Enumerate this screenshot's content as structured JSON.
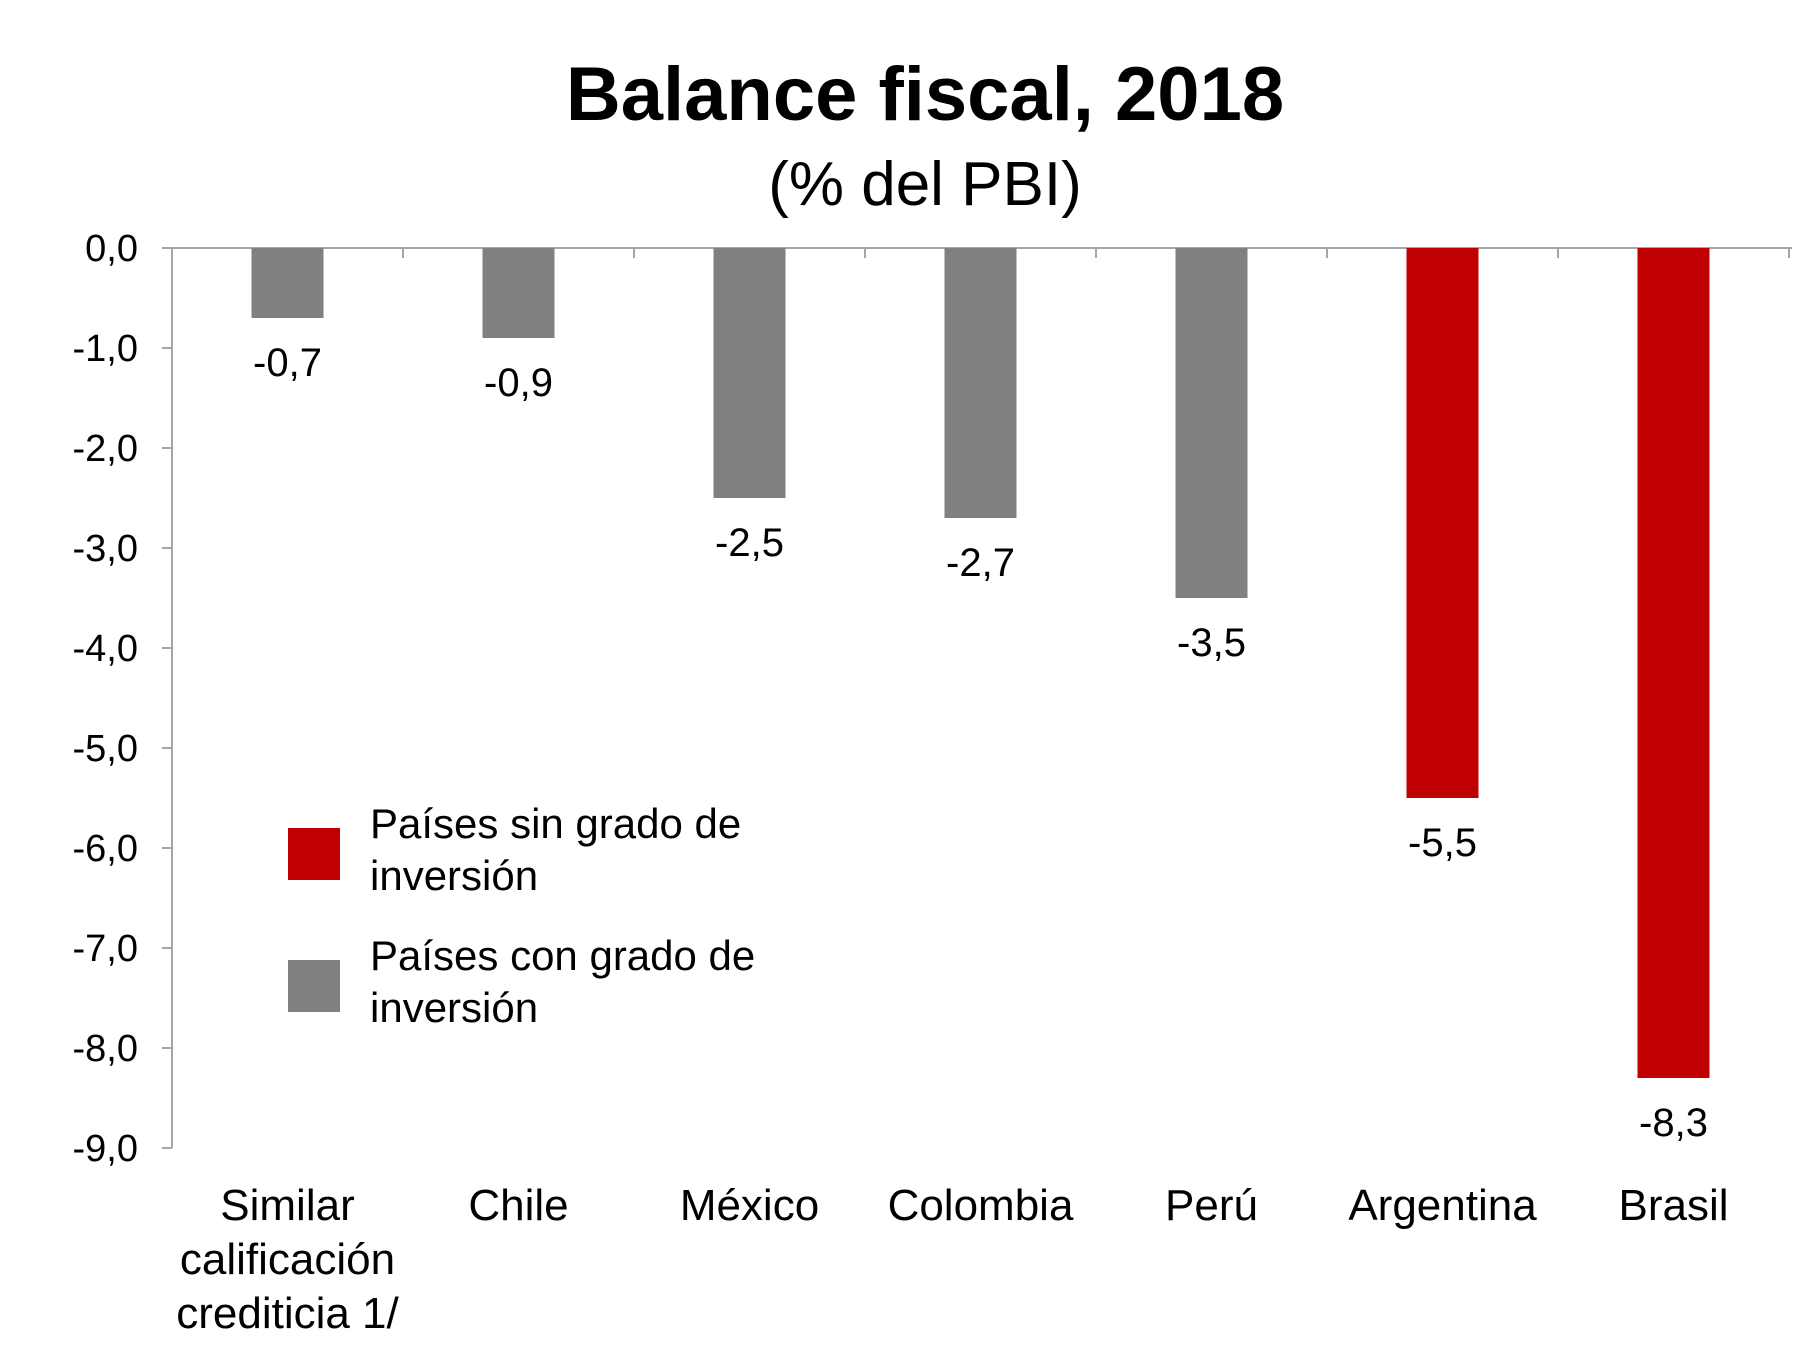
{
  "chart_data": {
    "type": "bar",
    "title": "Balance fiscal, 2018",
    "subtitle": "(% del PBI)",
    "xlabel": "",
    "ylabel": "",
    "ylim": [
      -9,
      0
    ],
    "yticks": [
      0,
      -1,
      -2,
      -3,
      -4,
      -5,
      -6,
      -7,
      -8,
      -9
    ],
    "ytick_labels": [
      "0,0",
      "-1,0",
      "-2,0",
      "-3,0",
      "-4,0",
      "-5,0",
      "-6,0",
      "-7,0",
      "-8,0",
      "-9,0"
    ],
    "categories": [
      [
        "Similar",
        "calificación",
        "crediticia 1/"
      ],
      [
        "Chile"
      ],
      [
        "México"
      ],
      [
        "Colombia"
      ],
      [
        "Perú"
      ],
      [
        "Argentina"
      ],
      [
        "Brasil"
      ]
    ],
    "values": [
      -0.7,
      -0.9,
      -2.5,
      -2.7,
      -3.5,
      -5.5,
      -8.3
    ],
    "value_labels": [
      "-0,7",
      "-0,9",
      "-2,5",
      "-2,7",
      "-3,5",
      "-5,5",
      "-8,3"
    ],
    "groups": [
      "con",
      "con",
      "con",
      "con",
      "con",
      "sin",
      "sin"
    ],
    "legend": {
      "placement": "center-left",
      "entries": [
        {
          "key": "sin",
          "lines": [
            "Países sin grado de",
            "inversión"
          ],
          "color": "#c00000"
        },
        {
          "key": "con",
          "lines": [
            "Países con grado de",
            "inversión"
          ],
          "color": "#808080"
        }
      ]
    },
    "colors": {
      "sin": "#c00000",
      "con": "#808080",
      "axis": "#a6a6a6"
    }
  }
}
